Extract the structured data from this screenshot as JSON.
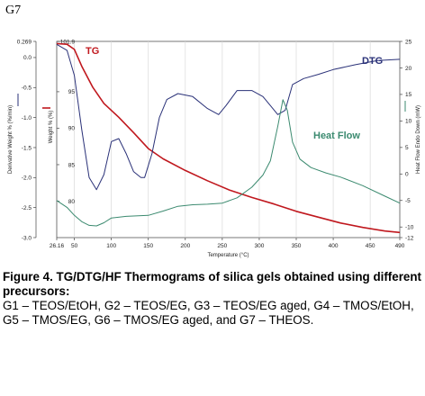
{
  "panel_label": "G7",
  "chart_data": {
    "type": "line",
    "title": "",
    "xlabel": "Temperature (°C)",
    "xlim": [
      26.16,
      490
    ],
    "x_ticks": [
      {
        "value": 26.16,
        "label": "26.16"
      },
      {
        "value": 50,
        "label": "50"
      },
      {
        "value": 100,
        "label": "100"
      },
      {
        "value": 150,
        "label": "150"
      },
      {
        "value": 200,
        "label": "200"
      },
      {
        "value": 250,
        "label": "250"
      },
      {
        "value": 300,
        "label": "300"
      },
      {
        "value": 350,
        "label": "350"
      },
      {
        "value": 400,
        "label": "400"
      },
      {
        "value": 450,
        "label": "450"
      },
      {
        "value": 490,
        "label": "490"
      }
    ],
    "axes": {
      "derivative": {
        "label": "Derivative Weight % (%/min)",
        "range": [
          -3.0,
          0.269
        ],
        "ticks": [
          {
            "value": 0.269,
            "label": "0.269"
          },
          {
            "value": 0.0,
            "label": "0.0"
          },
          {
            "value": -0.5,
            "label": "-0.5"
          },
          {
            "value": -1.0,
            "label": "-1.0"
          },
          {
            "value": -1.5,
            "label": "-1.5"
          },
          {
            "value": -2.0,
            "label": "-2.0"
          },
          {
            "value": -2.5,
            "label": "-2.5"
          },
          {
            "value": -3.0,
            "label": "-3.0"
          }
        ]
      },
      "weight": {
        "label": "Weight % (%)",
        "range": [
          75,
          101.9
        ],
        "ticks": [
          {
            "value": 101.9,
            "label": "101.9"
          },
          {
            "value": 95,
            "label": "95"
          },
          {
            "value": 90,
            "label": "90"
          },
          {
            "value": 85,
            "label": "85"
          },
          {
            "value": 80,
            "label": "80"
          }
        ]
      },
      "heat_flow": {
        "label": "Heat Flow Endo Down (mW)",
        "range": [
          -12,
          25
        ],
        "ticks": [
          {
            "value": 25,
            "label": "25"
          },
          {
            "value": 20,
            "label": "20"
          },
          {
            "value": 15,
            "label": "15"
          },
          {
            "value": 10,
            "label": "10"
          },
          {
            "value": 5,
            "label": "5"
          },
          {
            "value": 0,
            "label": "0"
          },
          {
            "value": -5,
            "label": "-5"
          },
          {
            "value": -10,
            "label": "-10"
          },
          {
            "value": -12,
            "label": "-12"
          }
        ]
      }
    },
    "series": [
      {
        "name": "TG",
        "axis": "weight",
        "color": "#c0181e",
        "x": [
          26.16,
          40,
          50,
          60,
          75,
          90,
          110,
          130,
          150,
          170,
          200,
          230,
          260,
          290,
          320,
          350,
          380,
          410,
          440,
          470,
          490
        ],
        "values": [
          101.6,
          101.5,
          100.8,
          98.5,
          95.6,
          93.4,
          91.5,
          89.4,
          87.2,
          85.8,
          84.2,
          82.8,
          81.5,
          80.5,
          79.6,
          78.6,
          77.8,
          77.0,
          76.4,
          75.9,
          75.7
        ]
      },
      {
        "name": "DTG",
        "axis": "derivative",
        "color": "#2a3178",
        "x": [
          26.16,
          40,
          50,
          60,
          70,
          80,
          90,
          100,
          110,
          120,
          130,
          140,
          145,
          155,
          165,
          175,
          190,
          210,
          230,
          245,
          255,
          270,
          290,
          305,
          315,
          325,
          335,
          345,
          360,
          380,
          400,
          430,
          460,
          490
        ],
        "values": [
          0.22,
          0.12,
          -0.3,
          -1.2,
          -2.0,
          -2.2,
          -1.95,
          -1.4,
          -1.35,
          -1.6,
          -1.9,
          -2.0,
          -2.0,
          -1.6,
          -1.0,
          -0.7,
          -0.6,
          -0.65,
          -0.85,
          -0.95,
          -0.8,
          -0.55,
          -0.55,
          -0.65,
          -0.8,
          -0.95,
          -0.88,
          -0.45,
          -0.35,
          -0.28,
          -0.2,
          -0.12,
          -0.05,
          -0.03
        ]
      },
      {
        "name": "Heat Flow",
        "axis": "heat_flow",
        "color": "#3b8a6f",
        "x": [
          26.16,
          40,
          50,
          60,
          70,
          80,
          90,
          100,
          120,
          150,
          170,
          190,
          210,
          230,
          250,
          270,
          290,
          305,
          315,
          325,
          332,
          338,
          345,
          355,
          370,
          390,
          410,
          440,
          470,
          490
        ],
        "values": [
          -5.0,
          -6.3,
          -7.8,
          -9.0,
          -9.7,
          -9.8,
          -9.2,
          -8.3,
          -8.0,
          -7.8,
          -7.0,
          -6.1,
          -5.8,
          -5.7,
          -5.5,
          -4.5,
          -2.5,
          -0.2,
          2.5,
          9.0,
          14.0,
          12.0,
          6.0,
          2.8,
          1.2,
          0.2,
          -0.6,
          -2.2,
          -4.2,
          -5.5
        ]
      }
    ],
    "annotations": [
      {
        "text": "TG",
        "color": "#c0181e"
      },
      {
        "text": "DTG",
        "color": "#2a3178"
      },
      {
        "text": "Heat Flow",
        "color": "#3b8a6f"
      }
    ]
  },
  "caption": {
    "head": "Figure 4. TG/DTG/HF Thermograms of silica gels obtained using different precursors:",
    "body": "G1 – TEOS/EtOH, G2 – TEOS/EG, G3 – TEOS/EG aged, G4 – TMOS/EtOH, G5 – TMOS/EG, G6 – TMOS/EG aged, and G7 – THEOS."
  }
}
